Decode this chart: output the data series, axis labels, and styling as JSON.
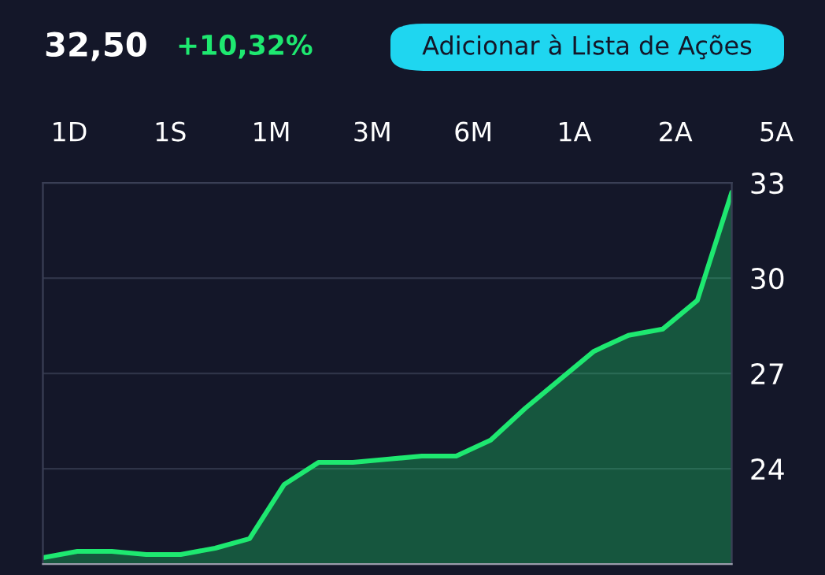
{
  "chart_data": {
    "type": "area",
    "categories": [
      null,
      null,
      null,
      null,
      null,
      null,
      null,
      null,
      null,
      null,
      null,
      null,
      null,
      null,
      null,
      null,
      null,
      null,
      null,
      null,
      null
    ],
    "series": [
      {
        "color": "#1ee870",
        "values": [
          21.2,
          21.4,
          21.4,
          21.3,
          21.3,
          21.5,
          21.8,
          23.5,
          24.2,
          24.2,
          24.3,
          24.4,
          24.4,
          24.9,
          25.9,
          26.8,
          27.7,
          28.2,
          28.4,
          29.3,
          32.7
        ]
      }
    ],
    "ylim": [
      21,
      33
    ],
    "yticks": [
      24,
      27,
      30,
      33
    ],
    "grid": "y",
    "tick_labels": "y",
    "legend": false,
    "annotations": [
      "32,50",
      "+10,32%",
      "Adicionar à Lista de Ações",
      "1D",
      "1S",
      "1M",
      "3M",
      "6M",
      "1A",
      "2A",
      "5A"
    ]
  }
}
